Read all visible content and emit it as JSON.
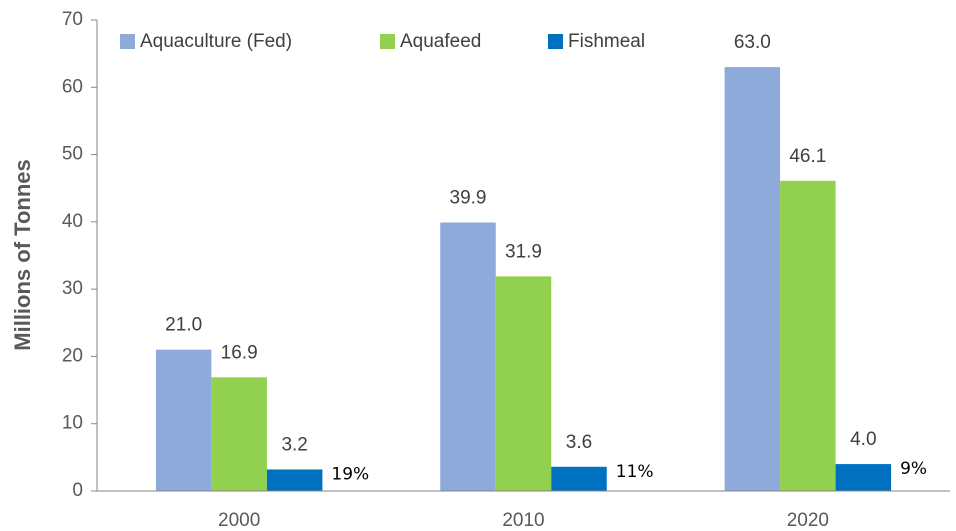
{
  "chart_data": {
    "type": "bar",
    "y_label": "Millions of Tonnes",
    "categories": [
      "2000",
      "2010",
      "2020"
    ],
    "series": [
      {
        "name": "Aquaculture (Fed)",
        "color": "#8eaadb",
        "values": [
          21,
          39.9,
          63
        ],
        "value_labels": [
          "21.0",
          "39.9",
          "63.0"
        ]
      },
      {
        "name": "Aquafeed",
        "color": "#92d050",
        "values": [
          16.9,
          31.9,
          46.1
        ],
        "value_labels": [
          "16.9",
          "31.9",
          "46.1"
        ]
      },
      {
        "name": "Fishmeal",
        "color": "#0070c0",
        "values": [
          3.2,
          3.6,
          4
        ],
        "value_labels": [
          "3.2",
          "3.6",
          "4.0"
        ],
        "annotations": [
          "19%",
          "11%",
          "9%"
        ]
      }
    ],
    "ylim": [
      0,
      70
    ],
    "yticks": [
      0,
      10,
      20,
      30,
      40,
      50,
      60,
      70
    ],
    "legend": "top-left"
  }
}
